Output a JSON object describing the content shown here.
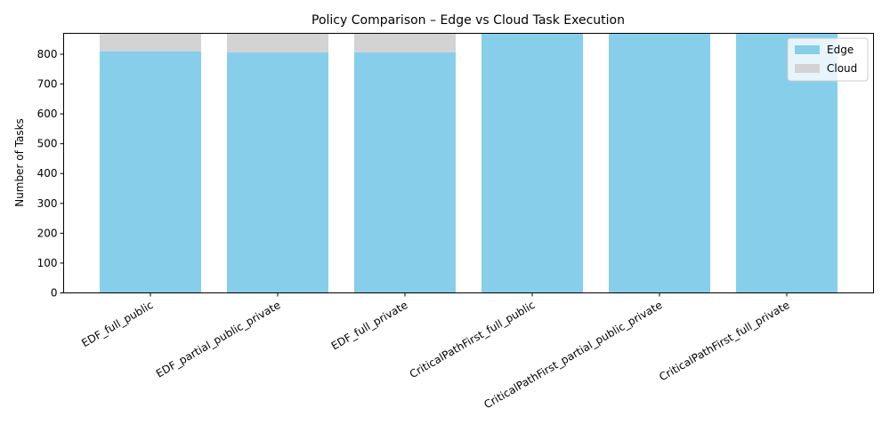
{
  "chart_data": {
    "type": "bar",
    "stacked": true,
    "title": "Policy Comparison – Edge vs Cloud Task Execution",
    "xlabel": "",
    "ylabel": "Number of Tasks",
    "ylim": [
      0,
      870
    ],
    "yticks": [
      0,
      100,
      200,
      300,
      400,
      500,
      600,
      700,
      800
    ],
    "grid": false,
    "legend_position": "top-right",
    "categories": [
      "EDF_full_public",
      "EDF_partial_public_private",
      "EDF_full_private",
      "CriticalPathFirst_full_public",
      "CriticalPathFirst_partial_public_private",
      "CriticalPathFirst_full_private"
    ],
    "series": [
      {
        "name": "Edge",
        "color": "#87ceeb",
        "values": [
          810,
          806,
          806,
          870,
          870,
          870
        ]
      },
      {
        "name": "Cloud",
        "color": "#d3d3d3",
        "values": [
          60,
          64,
          64,
          0,
          0,
          0
        ]
      }
    ]
  }
}
